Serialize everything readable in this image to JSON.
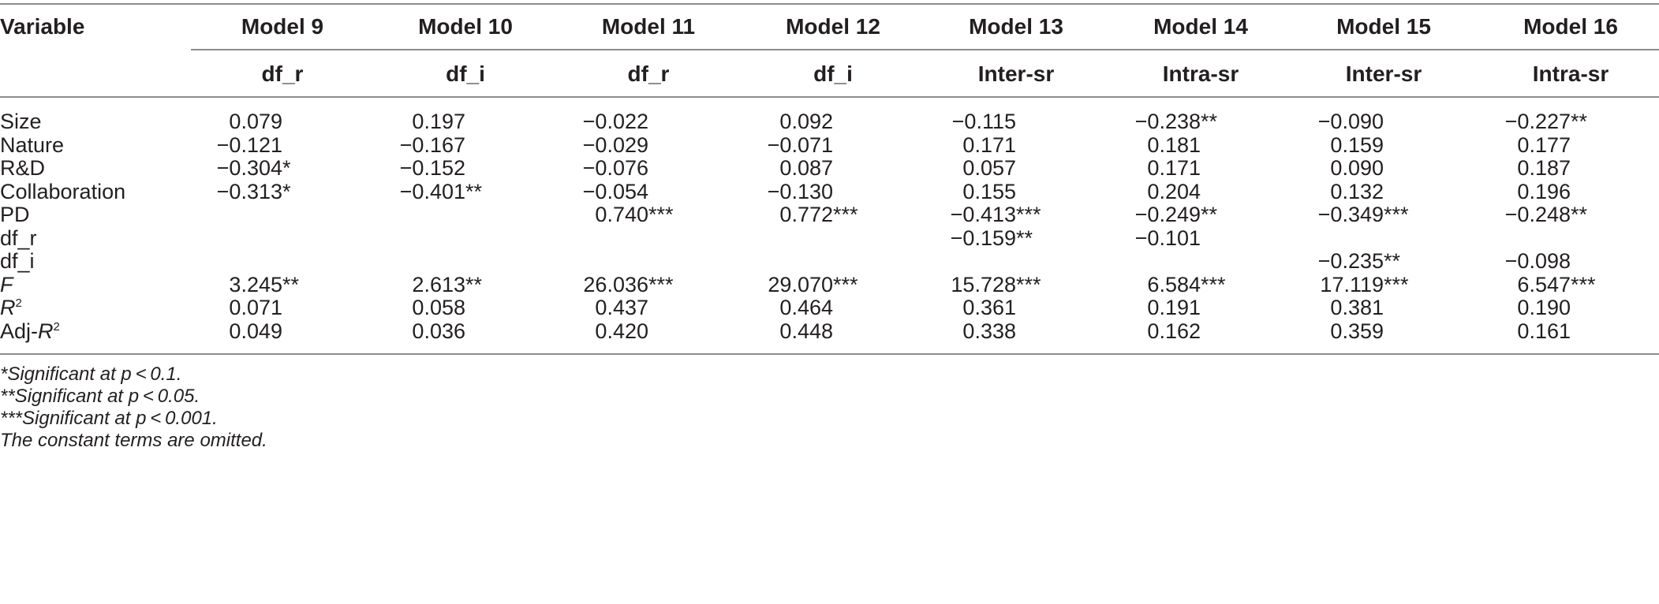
{
  "header": {
    "variable_label": "Variable",
    "models": [
      "Model 9",
      "Model 10",
      "Model 11",
      "Model 12",
      "Model 13",
      "Model 14",
      "Model 15",
      "Model 16"
    ],
    "dependents": [
      "df_r",
      "df_i",
      "df_r",
      "df_i",
      "Inter-sr",
      "Intra-sr",
      "Inter-sr",
      "Intra-sr"
    ]
  },
  "rows": [
    {
      "var": "Size",
      "cells": [
        [
          "0.079",
          ""
        ],
        [
          "0.197",
          ""
        ],
        [
          "−0.022",
          ""
        ],
        [
          "0.092",
          ""
        ],
        [
          "−0.115",
          ""
        ],
        [
          "−0.238",
          "**"
        ],
        [
          "−0.090",
          ""
        ],
        [
          "−0.227",
          "**"
        ]
      ]
    },
    {
      "var": "Nature",
      "cells": [
        [
          "−0.121",
          ""
        ],
        [
          "−0.167",
          ""
        ],
        [
          "−0.029",
          ""
        ],
        [
          "−0.071",
          ""
        ],
        [
          "0.171",
          ""
        ],
        [
          "0.181",
          ""
        ],
        [
          "0.159",
          ""
        ],
        [
          "0.177",
          ""
        ]
      ]
    },
    {
      "var": "R&D",
      "cells": [
        [
          "−0.304",
          "*"
        ],
        [
          "−0.152",
          ""
        ],
        [
          "−0.076",
          ""
        ],
        [
          "0.087",
          ""
        ],
        [
          "0.057",
          ""
        ],
        [
          "0.171",
          ""
        ],
        [
          "0.090",
          ""
        ],
        [
          "0.187",
          ""
        ]
      ]
    },
    {
      "var": "Collaboration",
      "cells": [
        [
          "−0.313",
          "*"
        ],
        [
          "−0.401",
          "**"
        ],
        [
          "−0.054",
          ""
        ],
        [
          "−0.130",
          ""
        ],
        [
          "0.155",
          ""
        ],
        [
          "0.204",
          ""
        ],
        [
          "0.132",
          ""
        ],
        [
          "0.196",
          ""
        ]
      ]
    },
    {
      "var": "PD",
      "cells": [
        [
          "",
          ""
        ],
        [
          "",
          ""
        ],
        [
          "0.740",
          "***"
        ],
        [
          "0.772",
          "***"
        ],
        [
          "−0.413",
          "***"
        ],
        [
          "−0.249",
          "**"
        ],
        [
          "−0.349",
          "***"
        ],
        [
          "−0.248",
          "**"
        ]
      ]
    },
    {
      "var": "df_r",
      "cells": [
        [
          "",
          ""
        ],
        [
          "",
          ""
        ],
        [
          "",
          ""
        ],
        [
          "",
          ""
        ],
        [
          "−0.159",
          "**"
        ],
        [
          "−0.101",
          ""
        ],
        [
          "",
          ""
        ],
        [
          "",
          ""
        ]
      ]
    },
    {
      "var": "df_i",
      "cells": [
        [
          "",
          ""
        ],
        [
          "",
          ""
        ],
        [
          "",
          ""
        ],
        [
          "",
          ""
        ],
        [
          "",
          ""
        ],
        [
          "",
          ""
        ],
        [
          "−0.235",
          "**"
        ],
        [
          "−0.098",
          ""
        ]
      ]
    },
    {
      "var": "F",
      "cells": [
        [
          "3.245",
          "**"
        ],
        [
          "2.613",
          "**"
        ],
        [
          "26.036",
          "***"
        ],
        [
          "29.070",
          "***"
        ],
        [
          "15.728",
          "***"
        ],
        [
          "6.584",
          "***"
        ],
        [
          "17.119",
          "***"
        ],
        [
          "6.547",
          "***"
        ]
      ]
    },
    {
      "var": "R",
      "sup": "2",
      "cells": [
        [
          "0.071",
          ""
        ],
        [
          "0.058",
          ""
        ],
        [
          "0.437",
          ""
        ],
        [
          "0.464",
          ""
        ],
        [
          "0.361",
          ""
        ],
        [
          "0.191",
          ""
        ],
        [
          "0.381",
          ""
        ],
        [
          "0.190",
          ""
        ]
      ]
    },
    {
      "var": "Adj-",
      "var_italic": "R",
      "sup": "2",
      "cells": [
        [
          "0.049",
          ""
        ],
        [
          "0.036",
          ""
        ],
        [
          "0.420",
          ""
        ],
        [
          "0.448",
          ""
        ],
        [
          "0.338",
          ""
        ],
        [
          "0.162",
          ""
        ],
        [
          "0.359",
          ""
        ],
        [
          "0.161",
          ""
        ]
      ]
    }
  ],
  "notes": [
    "*Significant at p < 0.1.",
    "**Significant at p < 0.05.",
    "***Significant at p < 0.001.",
    "The constant terms are omitted."
  ]
}
